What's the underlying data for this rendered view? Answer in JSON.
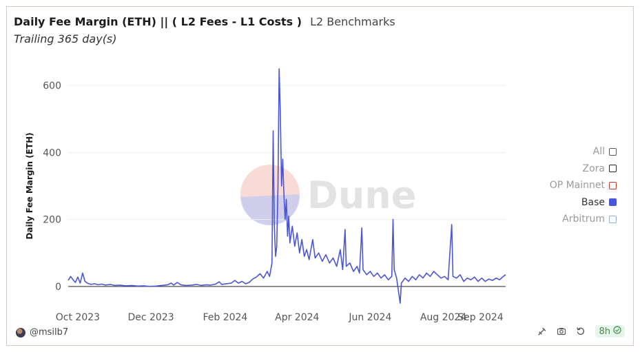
{
  "header": {
    "title": "Daily Fee Margin (ETH) || ( L2 Fees - L1 Costs )",
    "source": "L2 Benchmarks",
    "subtitle": "Trailing 365 day(s)"
  },
  "watermark": {
    "text": "Dune"
  },
  "legend": {
    "items": [
      {
        "label": "All",
        "color": "#555555",
        "active": false
      },
      {
        "label": "Zora",
        "color": "#222222",
        "active": false
      },
      {
        "label": "OP Mainnet",
        "color": "#c0392b",
        "active": false
      },
      {
        "label": "Base",
        "color": "#4a55d6",
        "active": true
      },
      {
        "label": "Arbitrum",
        "color": "#8fb3d6",
        "active": false
      }
    ]
  },
  "footer": {
    "author": "@msilb7",
    "refresh": "8h",
    "icons": [
      "embed-icon",
      "camera-icon",
      "refresh-icon",
      "check-circle-icon"
    ]
  },
  "chart_data": {
    "type": "line",
    "title": "Daily Fee Margin (ETH) || ( L2 Fees - L1 Costs )",
    "subtitle": "Trailing 365 day(s)",
    "ylabel": "Daily Fee Margin (ETH)",
    "xlabel": "",
    "ylim": [
      -60,
      660
    ],
    "yticks": [
      0,
      200,
      400,
      600
    ],
    "xlim": [
      "2023-09-23",
      "2024-09-22"
    ],
    "xticks": [
      {
        "date": "2023-10-01",
        "label": "Oct 2023"
      },
      {
        "date": "2023-12-01",
        "label": "Dec 2023"
      },
      {
        "date": "2024-02-01",
        "label": "Feb 2024"
      },
      {
        "date": "2024-04-01",
        "label": "Apr 2024"
      },
      {
        "date": "2024-06-01",
        "label": "Jun 2024"
      },
      {
        "date": "2024-08-01",
        "label": "Aug 2024"
      },
      {
        "date": "2024-09-01",
        "label": "Sep 2024"
      }
    ],
    "grid": true,
    "legend": "right",
    "series": [
      {
        "name": "Base",
        "color": "#4a55d6",
        "points": [
          [
            "2023-09-23",
            18
          ],
          [
            "2023-09-25",
            30
          ],
          [
            "2023-09-27",
            20
          ],
          [
            "2023-09-29",
            12
          ],
          [
            "2023-10-01",
            28
          ],
          [
            "2023-10-03",
            10
          ],
          [
            "2023-10-05",
            40
          ],
          [
            "2023-10-07",
            15
          ],
          [
            "2023-10-09",
            10
          ],
          [
            "2023-10-12",
            6
          ],
          [
            "2023-10-15",
            8
          ],
          [
            "2023-10-18",
            5
          ],
          [
            "2023-10-21",
            7
          ],
          [
            "2023-10-24",
            4
          ],
          [
            "2023-10-28",
            6
          ],
          [
            "2023-11-01",
            3
          ],
          [
            "2023-11-05",
            4
          ],
          [
            "2023-11-10",
            2
          ],
          [
            "2023-11-15",
            3
          ],
          [
            "2023-11-20",
            1
          ],
          [
            "2023-11-25",
            2
          ],
          [
            "2023-11-30",
            0
          ],
          [
            "2023-12-05",
            1
          ],
          [
            "2023-12-10",
            3
          ],
          [
            "2023-12-15",
            5
          ],
          [
            "2023-12-18",
            10
          ],
          [
            "2023-12-20",
            4
          ],
          [
            "2023-12-23",
            12
          ],
          [
            "2023-12-26",
            5
          ],
          [
            "2023-12-30",
            3
          ],
          [
            "2024-01-04",
            4
          ],
          [
            "2024-01-08",
            6
          ],
          [
            "2024-01-12",
            3
          ],
          [
            "2024-01-16",
            5
          ],
          [
            "2024-01-20",
            4
          ],
          [
            "2024-01-24",
            7
          ],
          [
            "2024-01-27",
            14
          ],
          [
            "2024-01-29",
            6
          ],
          [
            "2024-02-02",
            8
          ],
          [
            "2024-02-06",
            10
          ],
          [
            "2024-02-09",
            18
          ],
          [
            "2024-02-12",
            10
          ],
          [
            "2024-02-15",
            15
          ],
          [
            "2024-02-18",
            8
          ],
          [
            "2024-02-21",
            12
          ],
          [
            "2024-02-24",
            22
          ],
          [
            "2024-02-27",
            28
          ],
          [
            "2024-03-01",
            38
          ],
          [
            "2024-03-04",
            25
          ],
          [
            "2024-03-07",
            45
          ],
          [
            "2024-03-09",
            30
          ],
          [
            "2024-03-11",
            70
          ],
          [
            "2024-03-12",
            465
          ],
          [
            "2024-03-13",
            180
          ],
          [
            "2024-03-14",
            90
          ],
          [
            "2024-03-15",
            120
          ],
          [
            "2024-03-16",
            300
          ],
          [
            "2024-03-17",
            650
          ],
          [
            "2024-03-18",
            520
          ],
          [
            "2024-03-19",
            300
          ],
          [
            "2024-03-20",
            380
          ],
          [
            "2024-03-21",
            270
          ],
          [
            "2024-03-22",
            200
          ],
          [
            "2024-03-23",
            260
          ],
          [
            "2024-03-24",
            150
          ],
          [
            "2024-03-25",
            210
          ],
          [
            "2024-03-26",
            130
          ],
          [
            "2024-03-28",
            180
          ],
          [
            "2024-03-30",
            120
          ],
          [
            "2024-04-01",
            160
          ],
          [
            "2024-04-03",
            100
          ],
          [
            "2024-04-05",
            140
          ],
          [
            "2024-04-07",
            90
          ],
          [
            "2024-04-09",
            110
          ],
          [
            "2024-04-11",
            80
          ],
          [
            "2024-04-14",
            140
          ],
          [
            "2024-04-16",
            85
          ],
          [
            "2024-04-19",
            100
          ],
          [
            "2024-04-22",
            75
          ],
          [
            "2024-04-25",
            95
          ],
          [
            "2024-04-28",
            70
          ],
          [
            "2024-05-01",
            85
          ],
          [
            "2024-05-04",
            60
          ],
          [
            "2024-05-07",
            110
          ],
          [
            "2024-05-09",
            50
          ],
          [
            "2024-05-11",
            170
          ],
          [
            "2024-05-12",
            60
          ],
          [
            "2024-05-15",
            70
          ],
          [
            "2024-05-18",
            45
          ],
          [
            "2024-05-21",
            60
          ],
          [
            "2024-05-23",
            40
          ],
          [
            "2024-05-25",
            175
          ],
          [
            "2024-05-26",
            50
          ],
          [
            "2024-05-29",
            35
          ],
          [
            "2024-06-01",
            45
          ],
          [
            "2024-06-04",
            30
          ],
          [
            "2024-06-07",
            40
          ],
          [
            "2024-06-10",
            25
          ],
          [
            "2024-06-13",
            35
          ],
          [
            "2024-06-16",
            20
          ],
          [
            "2024-06-19",
            30
          ],
          [
            "2024-06-20",
            200
          ],
          [
            "2024-06-21",
            50
          ],
          [
            "2024-06-23",
            25
          ],
          [
            "2024-06-26",
            -50
          ],
          [
            "2024-06-27",
            10
          ],
          [
            "2024-06-30",
            25
          ],
          [
            "2024-07-03",
            15
          ],
          [
            "2024-07-06",
            30
          ],
          [
            "2024-07-09",
            20
          ],
          [
            "2024-07-12",
            35
          ],
          [
            "2024-07-15",
            25
          ],
          [
            "2024-07-18",
            40
          ],
          [
            "2024-07-21",
            30
          ],
          [
            "2024-07-24",
            45
          ],
          [
            "2024-07-27",
            35
          ],
          [
            "2024-07-30",
            25
          ],
          [
            "2024-08-02",
            30
          ],
          [
            "2024-08-05",
            20
          ],
          [
            "2024-08-08",
            185
          ],
          [
            "2024-08-09",
            30
          ],
          [
            "2024-08-12",
            25
          ],
          [
            "2024-08-15",
            35
          ],
          [
            "2024-08-18",
            15
          ],
          [
            "2024-08-21",
            25
          ],
          [
            "2024-08-24",
            20
          ],
          [
            "2024-08-27",
            28
          ],
          [
            "2024-08-30",
            15
          ],
          [
            "2024-09-02",
            25
          ],
          [
            "2024-09-05",
            15
          ],
          [
            "2024-09-08",
            22
          ],
          [
            "2024-09-11",
            18
          ],
          [
            "2024-09-14",
            25
          ],
          [
            "2024-09-17",
            20
          ],
          [
            "2024-09-20",
            30
          ],
          [
            "2024-09-22",
            35
          ]
        ]
      }
    ]
  }
}
